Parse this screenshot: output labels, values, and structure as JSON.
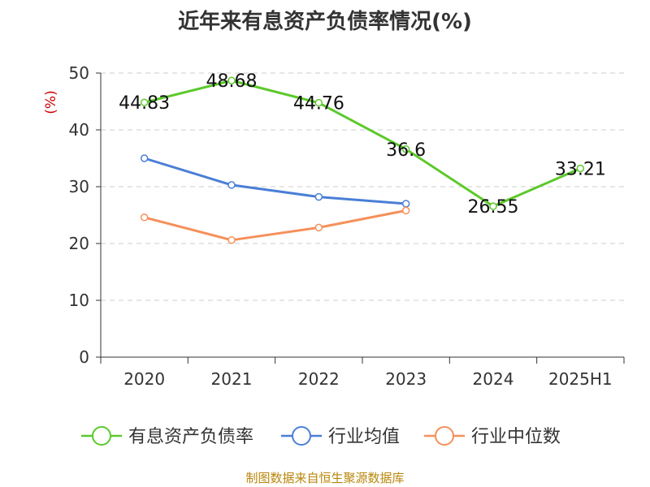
{
  "chart_data": {
    "type": "line",
    "title": "近年来有息资产负债率情况(%)",
    "ylabel": "(%)",
    "xlabel": "",
    "categories": [
      "2020",
      "2021",
      "2022",
      "2023",
      "2024",
      "2025H1"
    ],
    "ylim": [
      0,
      50
    ],
    "yticks": [
      0,
      10,
      20,
      30,
      40,
      50
    ],
    "grid": "horizontal-dashed",
    "legend_position": "bottom",
    "series": [
      {
        "name": "有息资产负债率",
        "color": "#5cc92b",
        "values": [
          44.83,
          48.68,
          44.76,
          36.6,
          26.55,
          33.21
        ],
        "labels": [
          "44.83",
          "48.68",
          "44.76",
          "36.6",
          "26.55",
          "33.21"
        ]
      },
      {
        "name": "行业均值",
        "color": "#4a7fd6",
        "values": [
          35.0,
          30.3,
          28.2,
          27.0,
          null,
          null
        ]
      },
      {
        "name": "行业中位数",
        "color": "#f5905a",
        "values": [
          24.6,
          20.6,
          22.8,
          25.8,
          null,
          null
        ]
      }
    ]
  },
  "source_note": "制图数据来自恒生聚源数据库"
}
